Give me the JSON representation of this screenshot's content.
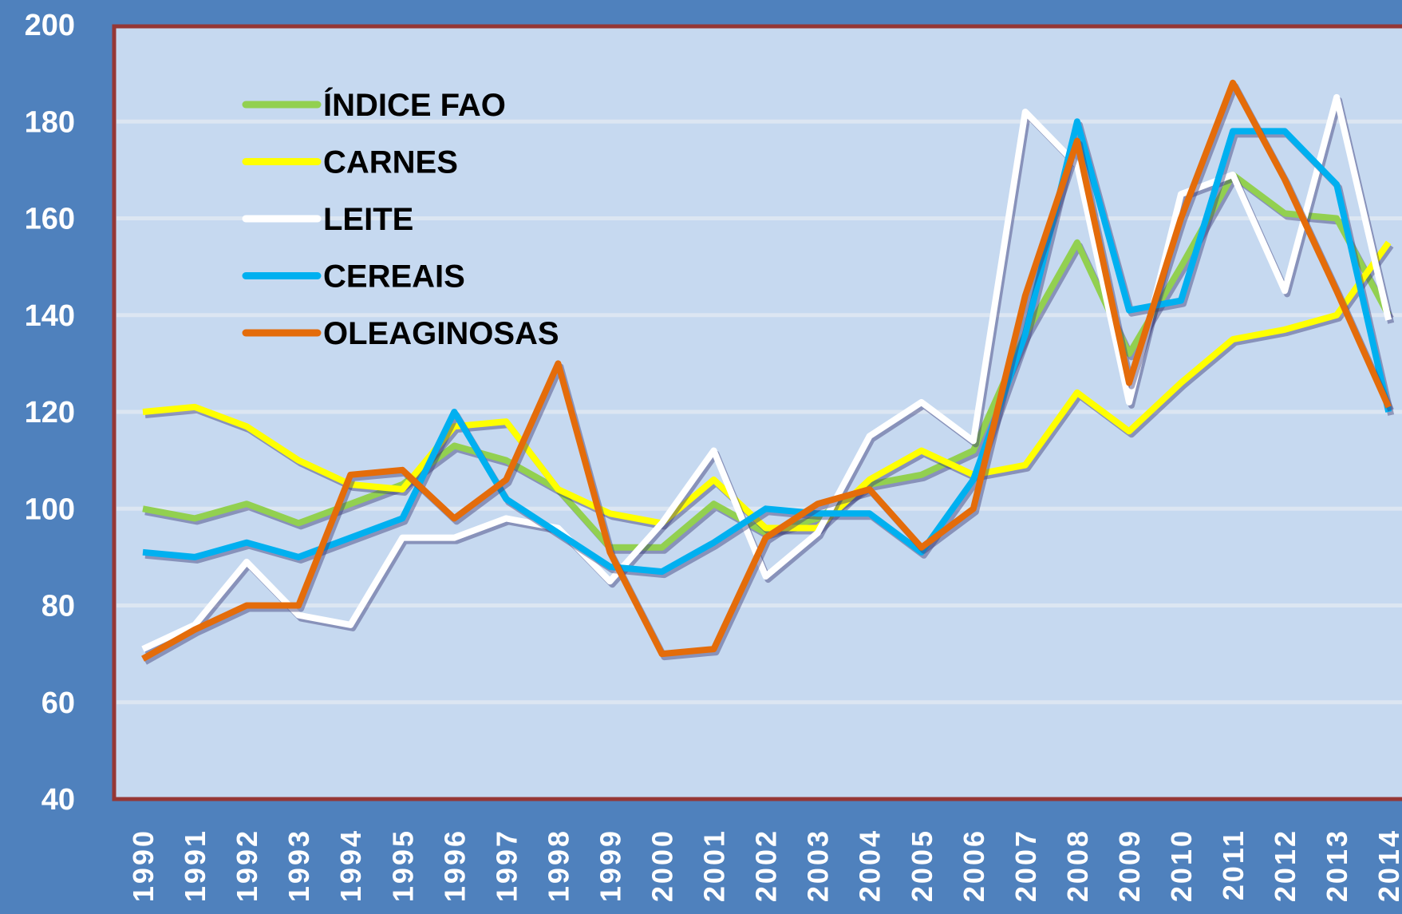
{
  "chart_data": {
    "type": "line",
    "categories": [
      "1990",
      "1991",
      "1992",
      "1993",
      "1994",
      "1995",
      "1996",
      "1997",
      "1998",
      "1999",
      "2000",
      "2001",
      "2002",
      "2003",
      "2004",
      "2005",
      "2006",
      "2007",
      "2008",
      "2009",
      "2010",
      "2011",
      "2012",
      "2013",
      "2014"
    ],
    "series": [
      {
        "name": "ÍNDICE FAO",
        "color": "#92d050",
        "values": [
          100,
          98,
          101,
          97,
          101,
          105,
          113,
          110,
          104,
          92,
          92,
          101,
          95,
          98,
          105,
          107,
          112,
          136,
          155,
          132,
          150,
          169,
          161,
          160,
          140
        ]
      },
      {
        "name": "CARNES",
        "color": "#ffff00",
        "values": [
          120,
          121,
          117,
          110,
          105,
          104,
          117,
          118,
          104,
          99,
          97,
          106,
          96,
          96,
          106,
          112,
          107,
          109,
          124,
          116,
          126,
          135,
          137,
          140,
          155
        ]
      },
      {
        "name": "LEITE",
        "color": "#ffffff",
        "values": [
          71,
          76,
          89,
          78,
          76,
          94,
          94,
          98,
          96,
          85,
          97,
          112,
          86,
          95,
          115,
          122,
          114,
          182,
          171,
          122,
          165,
          169,
          145,
          185,
          139
        ]
      },
      {
        "name": "CEREAIS",
        "color": "#00b0f0",
        "values": [
          91,
          90,
          93,
          90,
          94,
          98,
          120,
          102,
          95,
          88,
          87,
          93,
          100,
          99,
          99,
          91,
          106,
          136,
          180,
          141,
          143,
          178,
          178,
          167,
          120
        ]
      },
      {
        "name": "OLEAGINOSAS",
        "color": "#e46c0a",
        "values": [
          69,
          75,
          80,
          80,
          107,
          108,
          98,
          106,
          130,
          91,
          70,
          71,
          94,
          101,
          104,
          92,
          100,
          144,
          176,
          126,
          160,
          188,
          168,
          145,
          121
        ]
      }
    ],
    "ylim": [
      40,
      200
    ],
    "yticks": [
      40,
      60,
      80,
      100,
      120,
      140,
      160,
      180,
      200
    ],
    "grid": true,
    "legend": "top-left"
  }
}
